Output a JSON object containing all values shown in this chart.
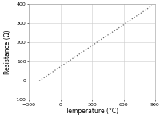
{
  "title": "",
  "xlabel": "Temperature (°C)",
  "ylabel": "Resistance (Ω)",
  "xlim": [
    -300,
    900
  ],
  "ylim": [
    -100,
    400
  ],
  "xticks": [
    -300,
    0,
    300,
    600,
    900
  ],
  "yticks": [
    -100,
    0,
    100,
    200,
    300,
    400
  ],
  "line_color": "#666666",
  "line_style": "dotted",
  "line_width": 0.9,
  "x_data": [
    -200,
    870
  ],
  "y_data": [
    0,
    390
  ],
  "background_color": "#ffffff",
  "grid_color": "#cccccc",
  "tick_fontsize": 4.5,
  "label_fontsize": 5.5
}
